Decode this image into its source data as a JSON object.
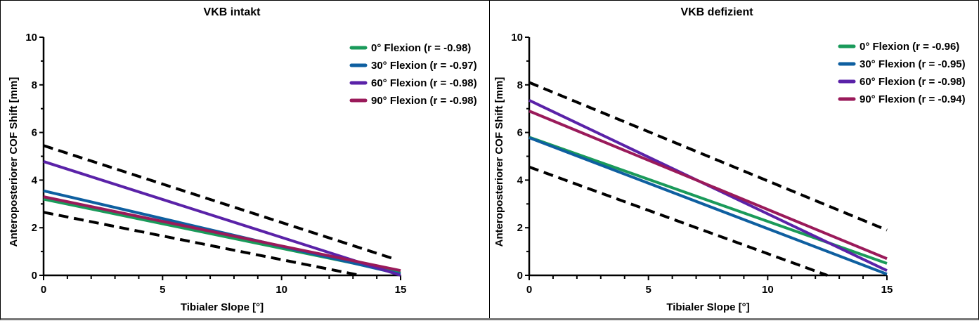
{
  "chart_data": [
    {
      "type": "line",
      "title": "VKB intakt",
      "xlabel": "Tibialer Slope [°]",
      "ylabel": "Anteroposteriorer COF Shift [mm]",
      "xlim": [
        0,
        15
      ],
      "ylim": [
        0,
        10
      ],
      "xticks": [
        0,
        5,
        10,
        15
      ],
      "yticks": [
        0,
        2,
        4,
        6,
        8,
        10
      ],
      "xminor_step": 1,
      "yminor_step": 1,
      "grid": false,
      "legend_position": "top-right",
      "series": [
        {
          "name": "0° Flexion (r = -0.98)",
          "color": "#1a9a5a",
          "x": [
            0,
            15
          ],
          "y": [
            3.2,
            0.1
          ]
        },
        {
          "name": "30° Flexion (r = -0.97)",
          "color": "#0e5fa0",
          "x": [
            0,
            15
          ],
          "y": [
            3.55,
            0.05
          ]
        },
        {
          "name": "60° Flexion (r = -0.98)",
          "color": "#5a22a8",
          "x": [
            0,
            15
          ],
          "y": [
            4.78,
            0.0
          ]
        },
        {
          "name": "90° Flexion (r = -0.98)",
          "color": "#9a1a5a",
          "x": [
            0,
            15
          ],
          "y": [
            3.3,
            0.2
          ]
        }
      ],
      "bounds": [
        {
          "name": "upper-bound",
          "color": "#000000",
          "style": "dashed",
          "x": [
            0,
            14.7
          ],
          "y": [
            5.45,
            0.7
          ]
        },
        {
          "name": "lower-bound",
          "color": "#000000",
          "style": "dashed",
          "x": [
            0,
            13.3
          ],
          "y": [
            2.65,
            0.0
          ]
        }
      ]
    },
    {
      "type": "line",
      "title": "VKB defizient",
      "xlabel": "Tibialer Slope [°]",
      "ylabel": "Anteroposteriorer COF Shift [mm]",
      "xlim": [
        0,
        15
      ],
      "ylim": [
        0,
        10
      ],
      "xticks": [
        0,
        5,
        10,
        15
      ],
      "yticks": [
        0,
        2,
        4,
        6,
        8,
        10
      ],
      "xminor_step": 1,
      "yminor_step": 1,
      "grid": false,
      "legend_position": "top-right",
      "series": [
        {
          "name": "0° Flexion (r = -0.96)",
          "color": "#1a9a5a",
          "x": [
            0,
            15
          ],
          "y": [
            5.8,
            0.5
          ]
        },
        {
          "name": "30° Flexion (r = -0.95)",
          "color": "#0e5fa0",
          "x": [
            0,
            15
          ],
          "y": [
            5.78,
            0.05
          ]
        },
        {
          "name": "60° Flexion (r = -0.98)",
          "color": "#5a22a8",
          "x": [
            0,
            15
          ],
          "y": [
            7.35,
            0.2
          ]
        },
        {
          "name": "90° Flexion (r = -0.94)",
          "color": "#9a1a5a",
          "x": [
            0,
            15
          ],
          "y": [
            6.9,
            0.7
          ]
        }
      ],
      "bounds": [
        {
          "name": "upper-bound",
          "color": "#000000",
          "style": "dashed",
          "x": [
            0,
            15
          ],
          "y": [
            8.1,
            1.9
          ]
        },
        {
          "name": "lower-bound",
          "color": "#000000",
          "style": "dashed",
          "x": [
            0,
            12.5
          ],
          "y": [
            4.55,
            0.0
          ]
        }
      ]
    }
  ]
}
